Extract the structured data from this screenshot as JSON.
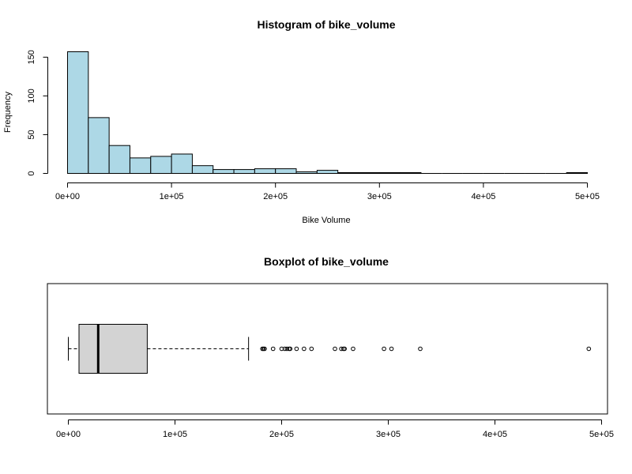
{
  "chart_data": [
    {
      "type": "bar",
      "title": "Histogram of bike_volume",
      "xlabel": "Bike Volume",
      "ylabel": "Frequency",
      "bin_width": 20000,
      "bin_start": 0,
      "values": [
        157,
        72,
        36,
        20,
        22,
        25,
        10,
        5,
        5,
        6,
        6,
        2,
        4,
        1,
        1,
        1,
        1,
        0,
        0,
        0,
        0,
        0,
        0,
        0,
        1
      ],
      "xlim": [
        0,
        500000
      ],
      "ylim": [
        0,
        157
      ],
      "xticks": [
        0,
        100000,
        200000,
        300000,
        400000,
        500000
      ],
      "xtick_labels": [
        "0e+00",
        "1e+05",
        "2e+05",
        "3e+05",
        "4e+05",
        "5e+05"
      ],
      "yticks": [
        0,
        50,
        100,
        150
      ],
      "ytick_labels": [
        "0",
        "50",
        "100",
        "150"
      ],
      "bar_color": "#add8e6"
    },
    {
      "type": "boxplot",
      "title": "Boxplot of bike_volume",
      "min": 0,
      "q1": 10000,
      "median": 28000,
      "q3": 74000,
      "whisker_high": 169000,
      "outliers": [
        182000,
        183000,
        184000,
        192000,
        200000,
        203000,
        205000,
        207000,
        208000,
        214000,
        221000,
        228000,
        250000,
        256000,
        258000,
        259000,
        267000,
        296000,
        303000,
        330000,
        488000
      ],
      "xlim": [
        0,
        500000
      ],
      "xticks": [
        0,
        100000,
        200000,
        300000,
        400000,
        500000
      ],
      "xtick_labels": [
        "0e+00",
        "1e+05",
        "2e+05",
        "3e+05",
        "4e+05",
        "5e+05"
      ],
      "box_color": "#d3d3d3"
    }
  ]
}
